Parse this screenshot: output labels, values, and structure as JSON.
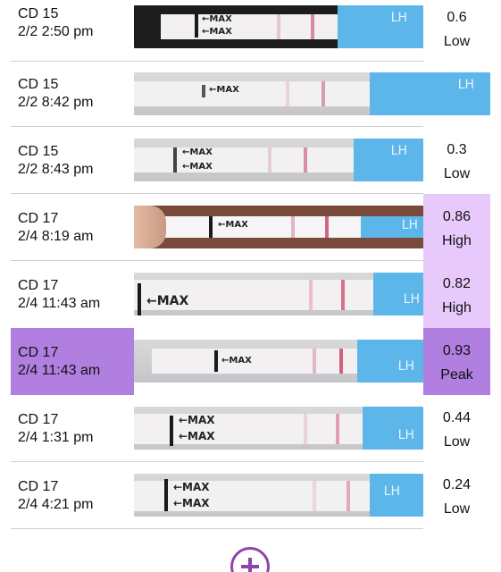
{
  "entries": [
    {
      "cd": "CD 15",
      "datetime": "2/2 2:50 pm",
      "value": "0.6",
      "level": "Low"
    },
    {
      "cd": "CD 15",
      "datetime": "2/2 8:42 pm",
      "value": "",
      "level": ""
    },
    {
      "cd": "CD 15",
      "datetime": "2/2 8:43 pm",
      "value": "0.3",
      "level": "Low"
    },
    {
      "cd": "CD 17",
      "datetime": "2/4 8:19 am",
      "value": "0.86",
      "level": "High"
    },
    {
      "cd": "CD 17",
      "datetime": "2/4 11:43 am",
      "value": "0.82",
      "level": "High"
    },
    {
      "cd": "CD 17",
      "datetime": "2/4 11:43 am",
      "value": "0.93",
      "level": "Peak"
    },
    {
      "cd": "CD 17",
      "datetime": "2/4 1:31 pm",
      "value": "0.44",
      "level": "Low"
    },
    {
      "cd": "CD 17",
      "datetime": "2/4 4:21 pm",
      "value": "0.24",
      "level": "Low"
    }
  ],
  "strip": {
    "max_label": "←MAX",
    "pad_label": "LH"
  },
  "colors": {
    "high": "#e8c9fb",
    "peak": "#b07fe0",
    "accent": "#8e44ad",
    "pad": "#5cb6ea",
    "test_line": "#d56a86"
  },
  "add_button": {
    "icon": "plus-circle-icon"
  }
}
